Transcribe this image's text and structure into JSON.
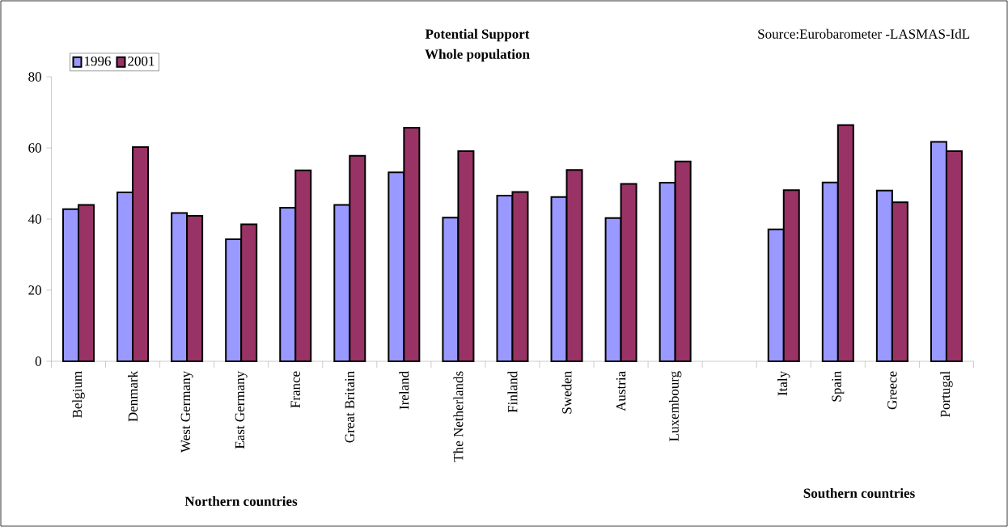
{
  "chart_data": {
    "type": "bar",
    "title": "Potential Support",
    "subtitle": "Whole population",
    "categories": [
      "Belgium",
      "Denmark",
      "West Germany",
      "East Germany",
      "France",
      "Great Britain",
      "Ireland",
      "The Netherlands",
      "Finland",
      "Sweden",
      "Austria",
      "Luxembourg",
      null,
      "Italy",
      "Spain",
      "Greece",
      "Portugal"
    ],
    "series": [
      {
        "name": "1996",
        "color": "#9999ff",
        "values": [
          42.8,
          47.5,
          41.7,
          34.3,
          43.2,
          44.0,
          53.1,
          40.4,
          46.6,
          46.2,
          40.3,
          50.2,
          null,
          37.1,
          50.3,
          48.0,
          61.7
        ]
      },
      {
        "name": "2001",
        "color": "#993366",
        "values": [
          44.0,
          60.2,
          40.9,
          38.5,
          53.7,
          57.8,
          65.7,
          59.1,
          47.6,
          53.8,
          49.9,
          56.2,
          null,
          48.1,
          66.4,
          44.7,
          59.1
        ]
      }
    ],
    "ylim": [
      0,
      80
    ],
    "yticks": [
      0,
      20,
      40,
      60,
      80
    ],
    "grid": false,
    "legend": "top left",
    "annotations": [
      "Source:Eurobarometer -LASMAS-IdL",
      "Northern countries",
      "Southern countries"
    ]
  }
}
